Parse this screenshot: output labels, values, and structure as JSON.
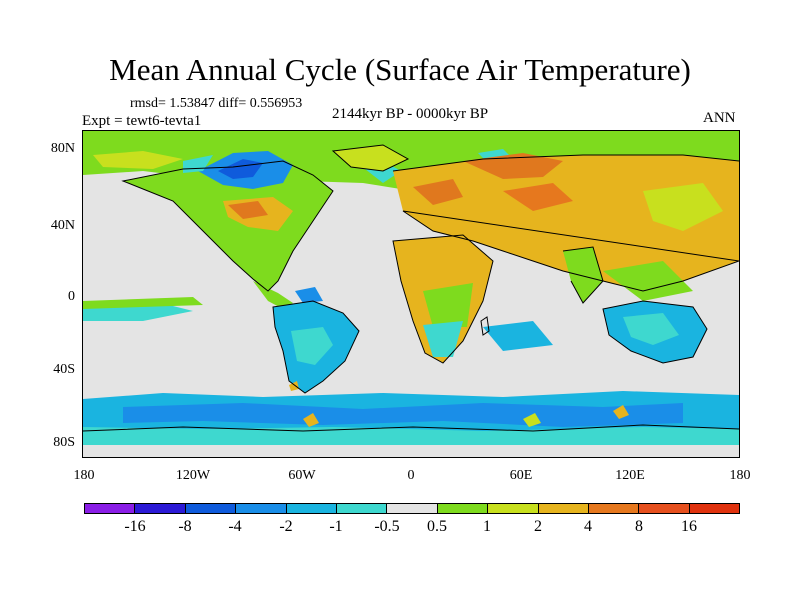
{
  "figure": {
    "title": "Mean Annual Cycle (Surface Air Temperature)",
    "stats_line": "rmsd= 1.53847  diff= 0.556953",
    "experiment": "Expt = tewt6-tevta1",
    "period": "2144kyr BP - 0000kyr BP",
    "season": "ANN"
  },
  "axes": {
    "y_ticks": [
      "80N",
      "40N",
      "0",
      "40S",
      "80S"
    ],
    "x_ticks": [
      "180",
      "120W",
      "60W",
      "0",
      "60E",
      "120E",
      "180"
    ]
  },
  "colorbar": {
    "labels": [
      "-16",
      "-8",
      "-4",
      "-2",
      "-1",
      "-0.5",
      "0.5",
      "1",
      "2",
      "4",
      "8",
      "16"
    ],
    "colors": [
      "#8a1ee6",
      "#2c1ad6",
      "#0f5bdc",
      "#1a8ee8",
      "#1ab4e0",
      "#3ed8cf",
      "#e4e4e4",
      "#7edb1e",
      "#c8e01e",
      "#e6b41e",
      "#e6781e",
      "#e6501e",
      "#e0320e"
    ]
  },
  "map_legend": {
    "warm_strong": "#e0781e",
    "warm": "#e6b41e",
    "mild": "#c8e01e",
    "slight": "#7edb1e",
    "neutral": "#e4e4e4",
    "cool_slight": "#3ed8cf",
    "cool": "#1ab4e0",
    "cold": "#1a8ee8",
    "very_cold": "#0f5bdc",
    "coast": "#000000"
  }
}
